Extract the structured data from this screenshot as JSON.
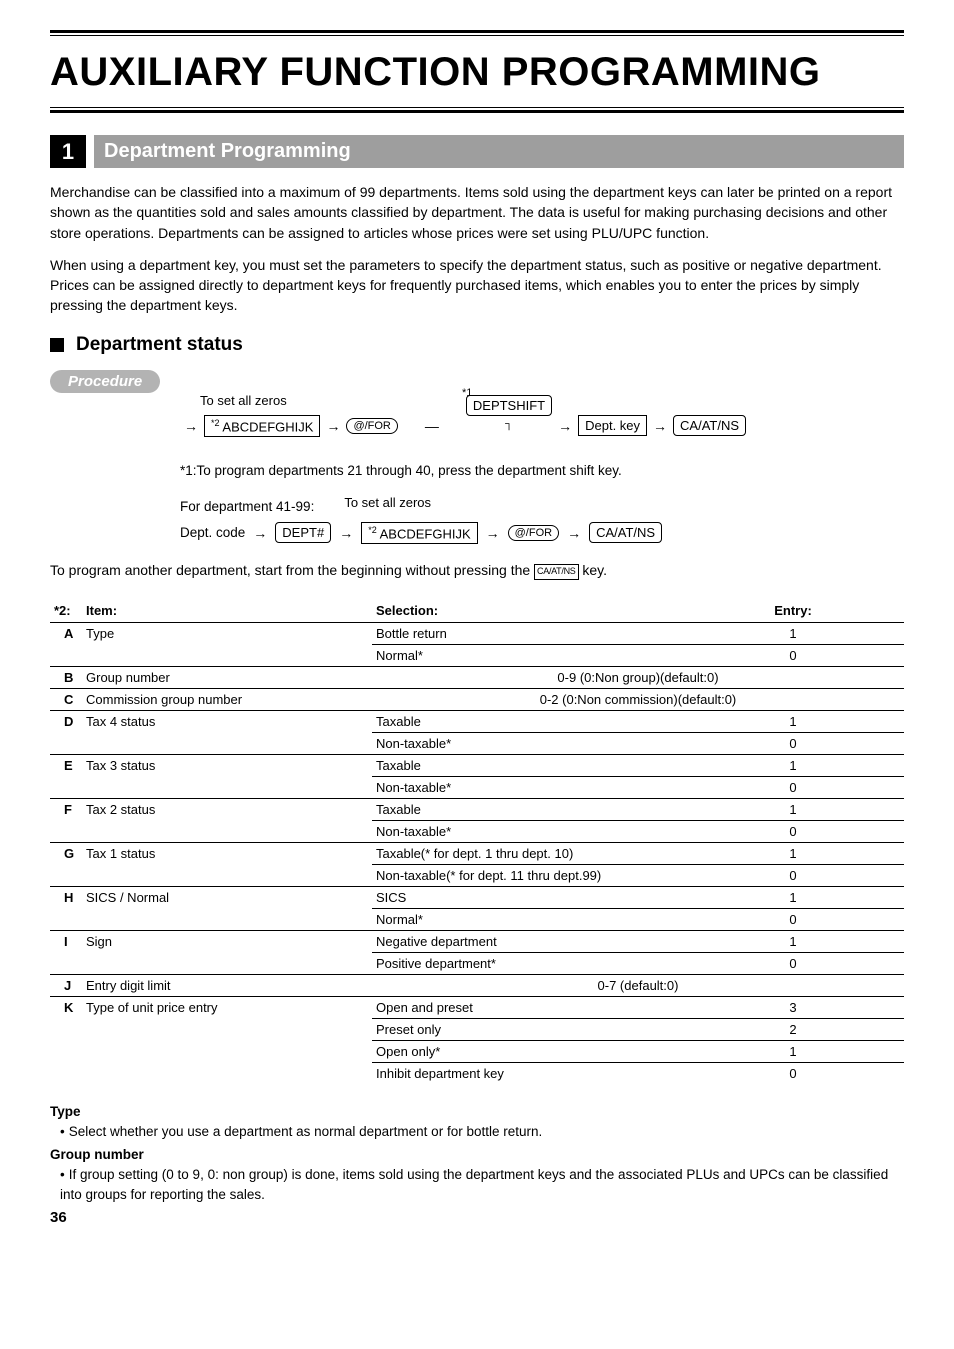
{
  "page": {
    "main_title": "AUXILIARY FUNCTION PROGRAMMING",
    "section_number": "1",
    "section_title": "Department Programming",
    "intro_para_1": "Merchandise can be classified into a maximum of 99 departments.  Items sold using the department keys can later be printed on a report shown as the quantities sold and sales amounts classified by department.  The data is useful for making purchasing decisions and other store operations.  Departments can be assigned to articles whose prices were set using PLU/UPC function.",
    "intro_para_2": "When using a department key, you must set the parameters to specify the department status, such as positive or negative department.  Prices can be assigned directly to department keys for frequently purchased items, which enables you to enter the prices by simply pressing the department keys.",
    "sub_heading": "Department status",
    "procedure_label": "Procedure",
    "flow1": {
      "top_note": "To set all zeros",
      "star1": "*1",
      "abc": "ABCDEFGHIJK",
      "abc_sup": "*2",
      "at_for": "@/FOR",
      "deptshift": "DEPTSHIFT",
      "dept_key": "Dept. key",
      "ca": "CA/AT/NS"
    },
    "foot_star1": "*1:To program departments 21 through 40, press the department shift key.",
    "dept41_label": "For department 41-99:",
    "flow2": {
      "top_note": "To set all zeros",
      "dept_code": "Dept. code",
      "dept_hash": "DEPT#",
      "abc": "ABCDEFGHIJK",
      "abc_sup": "*2",
      "at_for": "@/FOR",
      "ca": "CA/AT/NS"
    },
    "para_after_flow_pre": "To program another department, start from the beginning without pressing the ",
    "para_after_flow_key": "CA/AT/NS",
    "para_after_flow_post": " key.",
    "table": {
      "prefix": "*2:",
      "headers": [
        "Item:",
        "Selection:",
        "Entry:"
      ],
      "rows": [
        {
          "b": "A",
          "name": "Type",
          "sub": [
            {
              "sel": "Bottle return",
              "ent": "1"
            },
            {
              "sel": "Normal*",
              "ent": "0"
            }
          ]
        },
        {
          "b": "B",
          "name": "Group number",
          "sub": [
            {
              "sel": "",
              "ent": "0-9 (0:Non group)(default:0)",
              "wide": true
            }
          ]
        },
        {
          "b": "C",
          "name": "Commission group number",
          "sub": [
            {
              "sel": "",
              "ent": "0-2 (0:Non commission)(default:0)",
              "wide": true
            }
          ]
        },
        {
          "b": "D",
          "name": "Tax 4 status",
          "sub": [
            {
              "sel": "Taxable",
              "ent": "1"
            },
            {
              "sel": "Non-taxable*",
              "ent": "0"
            }
          ]
        },
        {
          "b": "E",
          "name": "Tax 3 status",
          "sub": [
            {
              "sel": "Taxable",
              "ent": "1"
            },
            {
              "sel": "Non-taxable*",
              "ent": "0"
            }
          ]
        },
        {
          "b": "F",
          "name": "Tax 2 status",
          "sub": [
            {
              "sel": "Taxable",
              "ent": "1"
            },
            {
              "sel": "Non-taxable*",
              "ent": "0"
            }
          ]
        },
        {
          "b": "G",
          "name": "Tax 1 status",
          "sub": [
            {
              "sel": "Taxable(* for dept. 1 thru dept. 10)",
              "ent": "1"
            },
            {
              "sel": "Non-taxable(* for dept. 11 thru dept.99)",
              "ent": "0"
            }
          ]
        },
        {
          "b": "H",
          "name": "SICS / Normal",
          "sub": [
            {
              "sel": "SICS",
              "ent": "1"
            },
            {
              "sel": "Normal*",
              "ent": "0"
            }
          ]
        },
        {
          "b": "I",
          "name": "Sign",
          "sub": [
            {
              "sel": "Negative department",
              "ent": "1"
            },
            {
              "sel": "Positive department*",
              "ent": "0"
            }
          ]
        },
        {
          "b": "J",
          "name": "Entry digit limit",
          "sub": [
            {
              "sel": "",
              "ent": "0-7 (default:0)",
              "wide": true
            }
          ]
        },
        {
          "b": "K",
          "name": "Type of unit price entry",
          "sub": [
            {
              "sel": "Open and preset",
              "ent": "3"
            },
            {
              "sel": "Preset only",
              "ent": "2"
            },
            {
              "sel": "Open only*",
              "ent": "1"
            },
            {
              "sel": "Inhibit department key",
              "ent": "0"
            }
          ]
        }
      ]
    },
    "desc": {
      "type_h": "Type",
      "type_b": "Select whether you use a department as normal department or for bottle return.",
      "group_h": "Group number",
      "group_b": "If group setting (0 to 9, 0: non group) is done, items sold using the department keys and the associated PLUs and UPCs can be classified into groups for reporting the sales."
    },
    "page_number": "36"
  }
}
